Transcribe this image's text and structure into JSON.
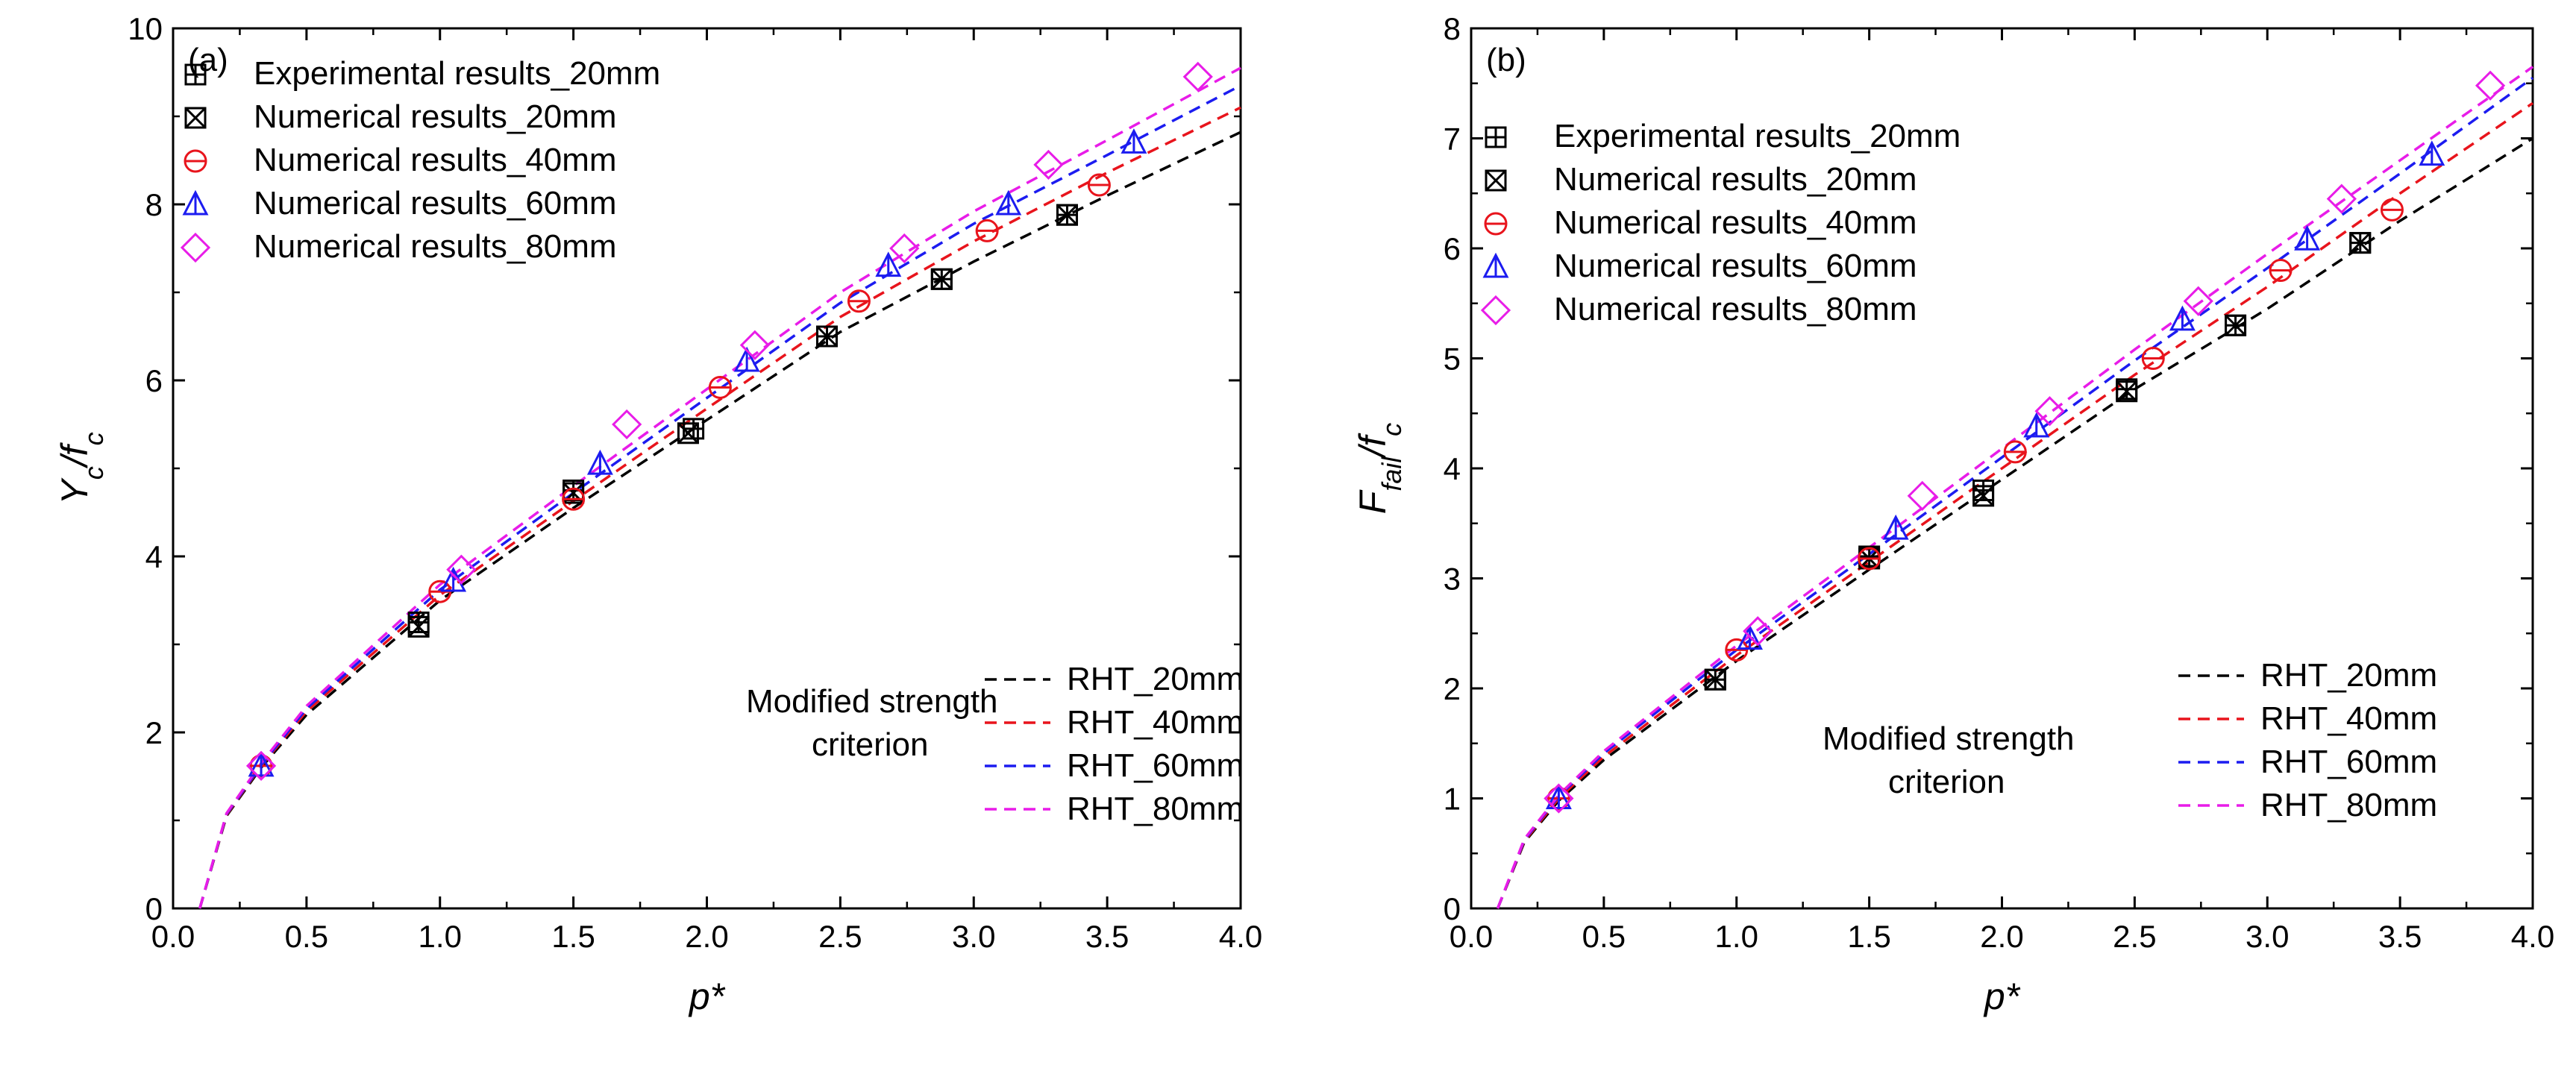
{
  "chart_data": [
    {
      "type": "scatter+line",
      "panel_label": "(a)",
      "xlabel": "p*",
      "ylabel_main": "Y",
      "ylabel_sub1": "c",
      "ylabel_mid": "/f",
      "ylabel_sub2": "c",
      "xlim": [
        0,
        4
      ],
      "ylim": [
        0,
        10
      ],
      "xticks": [
        "0.0",
        "0.5",
        "1.0",
        "1.5",
        "2.0",
        "2.5",
        "3.0",
        "3.5",
        "4.0"
      ],
      "yticks": [
        "0",
        "2",
        "4",
        "6",
        "8",
        "10"
      ],
      "scatter_series": [
        {
          "name": "Experimental results_20mm",
          "marker": "boxplus",
          "color": "#000000",
          "x": [
            0.92,
            1.5,
            1.95,
            2.45,
            2.88,
            3.35
          ],
          "y": [
            3.25,
            4.75,
            5.45,
            6.5,
            7.15,
            7.88
          ]
        },
        {
          "name": "Numerical results_20mm",
          "marker": "boxcross",
          "color": "#000000",
          "x": [
            0.92,
            1.5,
            1.93,
            2.45,
            2.88,
            3.35
          ],
          "y": [
            3.2,
            4.72,
            5.4,
            6.5,
            7.15,
            7.88
          ]
        },
        {
          "name": "Numerical results_40mm",
          "marker": "circle",
          "color": "#e8141c",
          "x": [
            0.33,
            1.0,
            1.5,
            2.05,
            2.57,
            3.05,
            3.47
          ],
          "y": [
            1.62,
            3.6,
            4.65,
            5.92,
            6.9,
            7.7,
            8.22
          ]
        },
        {
          "name": "Numerical results_60mm",
          "marker": "triangle",
          "color": "#1c1cf0",
          "x": [
            0.33,
            1.05,
            1.6,
            2.15,
            2.68,
            3.13,
            3.6
          ],
          "y": [
            1.62,
            3.72,
            5.05,
            6.22,
            7.3,
            8.0,
            8.7
          ]
        },
        {
          "name": "Numerical results_80mm",
          "marker": "diamond",
          "color": "#e81ce8",
          "x": [
            0.33,
            1.08,
            1.7,
            2.18,
            2.74,
            3.28,
            3.84
          ],
          "y": [
            1.62,
            3.85,
            5.5,
            6.4,
            7.5,
            8.45,
            9.45
          ]
        }
      ],
      "line_series": [
        {
          "name": "RHT_20mm",
          "color": "#000000",
          "x": [
            0.1,
            0.2,
            0.33,
            0.5,
            1.0,
            1.5,
            2.0,
            2.5,
            3.0,
            3.5,
            4.0
          ],
          "y": [
            0,
            1.05,
            1.6,
            2.2,
            3.5,
            4.55,
            5.55,
            6.55,
            7.35,
            8.1,
            8.82
          ]
        },
        {
          "name": "RHT_40mm",
          "color": "#e8141c",
          "x": [
            0.1,
            0.2,
            0.33,
            0.5,
            1.0,
            1.5,
            2.0,
            2.5,
            3.0,
            3.5,
            4.0
          ],
          "y": [
            0,
            1.06,
            1.62,
            2.24,
            3.56,
            4.63,
            5.68,
            6.72,
            7.58,
            8.36,
            9.1
          ]
        },
        {
          "name": "RHT_60mm",
          "color": "#1c1cf0",
          "x": [
            0.1,
            0.2,
            0.33,
            0.5,
            1.0,
            1.5,
            2.0,
            2.5,
            3.0,
            3.5,
            4.0
          ],
          "y": [
            0,
            1.07,
            1.63,
            2.27,
            3.62,
            4.72,
            5.8,
            6.88,
            7.78,
            8.56,
            9.35
          ]
        },
        {
          "name": "RHT_80mm",
          "color": "#e81ce8",
          "x": [
            0.1,
            0.2,
            0.33,
            0.5,
            1.0,
            1.5,
            2.0,
            2.5,
            3.0,
            3.5,
            4.0
          ],
          "y": [
            0,
            1.08,
            1.65,
            2.3,
            3.68,
            4.8,
            5.9,
            7.0,
            7.92,
            8.73,
            9.55
          ]
        }
      ],
      "line_legend_title_1": "Modified strength",
      "line_legend_title_2": "criterion"
    },
    {
      "type": "scatter+line",
      "panel_label": "(b)",
      "xlabel": "p*",
      "ylabel_main": "F",
      "ylabel_sub1": "fail",
      "ylabel_mid": "/f",
      "ylabel_sub2": "c",
      "xlim": [
        0,
        4
      ],
      "ylim": [
        0,
        8
      ],
      "xticks": [
        "0.0",
        "0.5",
        "1.0",
        "1.5",
        "2.0",
        "2.5",
        "3.0",
        "3.5",
        "4.0"
      ],
      "yticks": [
        "0",
        "1",
        "2",
        "3",
        "4",
        "5",
        "6",
        "7",
        "8"
      ],
      "scatter_series": [
        {
          "name": "Experimental results_20mm",
          "marker": "boxplus",
          "color": "#000000",
          "x": [
            0.92,
            1.5,
            1.93,
            2.47,
            2.88,
            3.35
          ],
          "y": [
            2.08,
            3.2,
            3.8,
            4.72,
            5.3,
            6.05
          ]
        },
        {
          "name": "Numerical results_20mm",
          "marker": "boxcross",
          "color": "#000000",
          "x": [
            0.92,
            1.5,
            1.93,
            2.47,
            2.88,
            3.35
          ],
          "y": [
            2.08,
            3.18,
            3.75,
            4.7,
            5.3,
            6.05
          ]
        },
        {
          "name": "Numerical results_40mm",
          "marker": "circle",
          "color": "#e8141c",
          "x": [
            0.33,
            1.0,
            1.5,
            2.05,
            2.57,
            3.05,
            3.47
          ],
          "y": [
            1.0,
            2.35,
            3.18,
            4.15,
            5.0,
            5.8,
            6.35
          ]
        },
        {
          "name": "Numerical results_60mm",
          "marker": "triangle",
          "color": "#1c1cf0",
          "x": [
            0.33,
            1.05,
            1.6,
            2.13,
            2.68,
            3.15,
            3.62
          ],
          "y": [
            1.0,
            2.45,
            3.45,
            4.38,
            5.35,
            6.08,
            6.85
          ]
        },
        {
          "name": "Numerical results_80mm",
          "marker": "diamond",
          "color": "#e81ce8",
          "x": [
            0.33,
            1.08,
            1.7,
            2.18,
            2.74,
            3.28,
            3.84
          ],
          "y": [
            1.0,
            2.52,
            3.75,
            4.52,
            5.52,
            6.45,
            7.48
          ]
        }
      ],
      "line_series": [
        {
          "name": "RHT_20mm",
          "color": "#000000",
          "x": [
            0.1,
            0.2,
            0.33,
            0.5,
            1.0,
            1.5,
            2.0,
            2.5,
            3.0,
            3.5,
            4.0
          ],
          "y": [
            0,
            0.6,
            0.98,
            1.35,
            2.25,
            3.08,
            3.9,
            4.72,
            5.45,
            6.25,
            7.0
          ]
        },
        {
          "name": "RHT_40mm",
          "color": "#e8141c",
          "x": [
            0.1,
            0.2,
            0.33,
            0.5,
            1.0,
            1.5,
            2.0,
            2.5,
            3.0,
            3.5,
            4.0
          ],
          "y": [
            0,
            0.61,
            1.0,
            1.38,
            2.3,
            3.15,
            4.0,
            4.85,
            5.65,
            6.5,
            7.32
          ]
        },
        {
          "name": "RHT_60mm",
          "color": "#1c1cf0",
          "x": [
            0.1,
            0.2,
            0.33,
            0.5,
            1.0,
            1.5,
            2.0,
            2.5,
            3.0,
            3.5,
            4.0
          ],
          "y": [
            0,
            0.62,
            1.02,
            1.41,
            2.35,
            3.22,
            4.1,
            4.98,
            5.82,
            6.68,
            7.55
          ]
        },
        {
          "name": "RHT_80mm",
          "color": "#e81ce8",
          "x": [
            0.1,
            0.2,
            0.33,
            0.5,
            1.0,
            1.5,
            2.0,
            2.5,
            3.0,
            3.5,
            4.0
          ],
          "y": [
            0,
            0.63,
            1.03,
            1.43,
            2.39,
            3.28,
            4.18,
            5.08,
            5.95,
            6.8,
            7.65
          ]
        }
      ],
      "line_legend_title_1": "Modified strength",
      "line_legend_title_2": "criterion"
    }
  ]
}
